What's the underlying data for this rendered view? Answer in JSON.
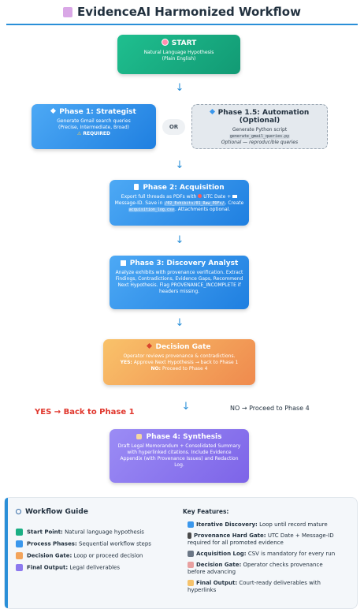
{
  "title": "EvidenceAI Harmonized Workflow",
  "title_icon": "clipboard-icon",
  "nodes": {
    "start": {
      "heading": "START",
      "text1": "Natural Language Hypothesis",
      "text2": "(Plain English)"
    },
    "phase1": {
      "heading": "Phase 1: Strategist",
      "text1": "Generate Gmail search queries",
      "text2": "(Precise, Intermediate, Broad)",
      "required": "REQUIRED"
    },
    "or": "OR",
    "phase15": {
      "heading": "Phase 1.5: Automation (Optional)",
      "text1": "Generate Python script",
      "code": "generate_gmail_queries.py",
      "note": "Optional — reproducible queries"
    },
    "phase2": {
      "heading": "Phase 2: Acquisition",
      "text1": "Export full threads as PDFs with",
      "text1b": "UTC Date +",
      "text2": "Message-ID. Save in",
      "code1": "/02_Exhibits/01_Raw_PDFs/",
      "text2b": ". Create",
      "code2": "acquisition_log.csv",
      "text3": ". Attachments optional."
    },
    "phase3": {
      "heading": "Phase 3: Discovery Analyst",
      "text1": "Analyze exhibits with provenance verification. Extract",
      "text2": "Findings, Contradictions, Evidence Gaps, Recommend",
      "text3": "Next Hypothesis. Flag PROVENANCE_INCOMPLETE if",
      "text4": "headers missing."
    },
    "gate": {
      "heading": "Decision Gate",
      "text1": "Operator reviews provenance & contradictions.",
      "yes_label": "YES:",
      "yes_text": "Approve Next Hypothesis → back to Phase 1",
      "no_label": "NO:",
      "no_text": "Proceed to Phase 4"
    },
    "phase4": {
      "heading": "Phase 4: Synthesis",
      "text1": "Draft Legal Memorandum + Consolidated Summary",
      "text2": "with hyperlinked citations. Include Evidence",
      "text3": "Appendix (with Provenance Issues) and Redaction",
      "text4": "Log."
    }
  },
  "branches": {
    "yes": "YES → Back to Phase 1",
    "no": "NO → Proceed to Phase 4"
  },
  "arrow_glyph": "↓",
  "guide": {
    "title": "Workflow Guide",
    "legend": [
      {
        "label": "Start Point:",
        "text": "Natural language hypothesis",
        "color": "#1aaf84"
      },
      {
        "label": "Process Phases:",
        "text": "Sequential workflow steps",
        "color": "#3a97ec"
      },
      {
        "label": "Decision Gate:",
        "text": "Loop or proceed decision",
        "color": "#f3a45b"
      },
      {
        "label": "Final Output:",
        "text": "Legal deliverables",
        "color": "#8c79ee"
      }
    ],
    "features_title": "Key Features:",
    "features": [
      {
        "label": "Iterative Discovery:",
        "text": "Loop until record mature",
        "text2": ""
      },
      {
        "label": "Provenance Hard Gate:",
        "text": "UTC Date + Message-ID",
        "text2": "required for all promoted evidence"
      },
      {
        "label": "Acquisition Log:",
        "text": "CSV is mandatory for every run",
        "text2": ""
      },
      {
        "label": "Decision Gate:",
        "text": "Operator checks provenance",
        "text2": "before advancing"
      },
      {
        "label": "Final Output:",
        "text": "Court-ready deliverables with",
        "text2": "hyperlinks"
      }
    ]
  },
  "colors": {
    "accent": "#2a8fd8",
    "start": "#1aaf84",
    "phase": "#3a97ec",
    "gate": "#f3a45b",
    "final": "#8c79ee",
    "yes": "#e0362c"
  }
}
